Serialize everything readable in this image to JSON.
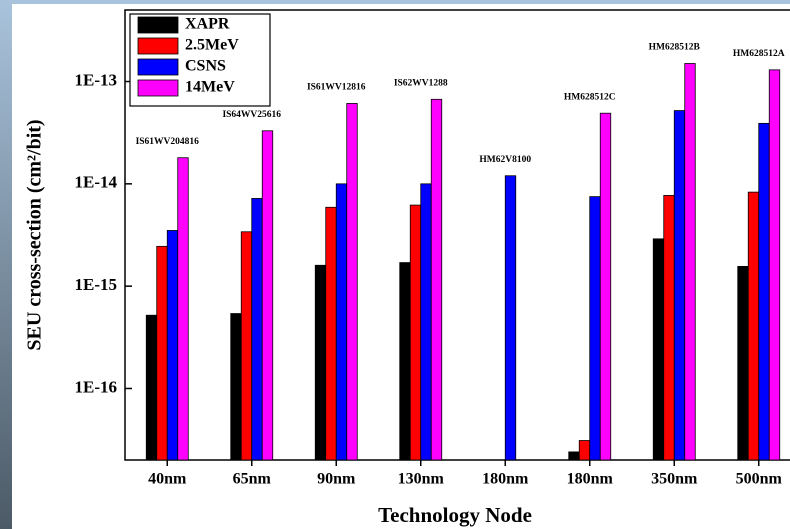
{
  "chart_data": {
    "type": "bar",
    "log_scale": true,
    "x_label": "Technology Node",
    "y_label": "SEU cross-section (cm²/bit)",
    "categories": [
      "40nm",
      "65nm",
      "90nm",
      "130nm",
      "180nm",
      "180nm",
      "350nm",
      "500nm"
    ],
    "bar_labels": [
      "IS61WV204816",
      "IS64WV25616",
      "IS61WV12816",
      "IS62WV1288",
      "HM62V8100",
      "HM628512C",
      "HM628512B",
      "HM628512A"
    ],
    "series": [
      {
        "name": "XAPR",
        "color": "#000000",
        "values": [
          5.2e-16,
          5.4e-16,
          1.6e-15,
          1.7e-15,
          null,
          2.4e-17,
          2.9e-15,
          1.56e-15
        ]
      },
      {
        "name": "2.5MeV",
        "color": "#ff0000",
        "values": [
          2.45e-15,
          3.4e-15,
          5.9e-15,
          6.2e-15,
          null,
          3.1e-17,
          7.7e-15,
          8.3e-15
        ]
      },
      {
        "name": "CSNS",
        "color": "#0000ff",
        "values": [
          3.5e-15,
          7.2e-15,
          1e-14,
          1e-14,
          1.2e-14,
          7.5e-15,
          5.2e-14,
          3.9e-14
        ]
      },
      {
        "name": "14MeV",
        "color": "#ff00ff",
        "values": [
          1.8e-14,
          3.3e-14,
          6.1e-14,
          6.7e-14,
          null,
          4.9e-14,
          1.5e-13,
          1.3e-13
        ]
      }
    ],
    "ylim": [
      2e-17,
      5e-13
    ],
    "yticks": [
      {
        "value": 1e-16,
        "label": "1E-16"
      },
      {
        "value": 1e-15,
        "label": "1E-15"
      },
      {
        "value": 1e-14,
        "label": "1E-14"
      },
      {
        "value": 1e-13,
        "label": "1E-13"
      }
    ],
    "legend": "top-left"
  }
}
